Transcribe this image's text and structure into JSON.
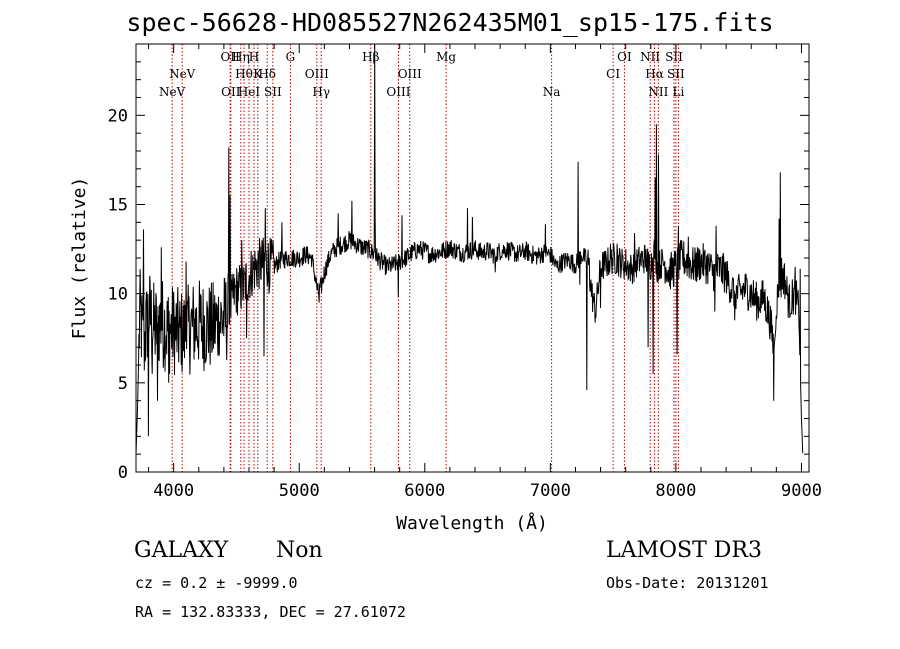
{
  "header": {
    "title": "spec-56628-HD085527N262435M01_sp15-175.fits"
  },
  "info": {
    "class": "GALAXY",
    "subclass": "Non",
    "survey": "LAMOST DR3",
    "cz_line": "cz = 0.2 ± -9999.0",
    "obs_date": "Obs-Date: 20131201",
    "coords": "RA = 132.83333, DEC =  27.61072"
  },
  "chart_data": {
    "type": "line",
    "title": "spec-56628-HD085527N262435M01_sp15-175.fits",
    "xlabel": "Wavelength (Å)",
    "ylabel": "Flux (relative)",
    "xlim": [
      3700,
      9060
    ],
    "ylim": [
      0,
      24
    ],
    "xticks": [
      4000,
      5000,
      6000,
      7000,
      8000,
      9000
    ],
    "yticks": [
      0,
      5,
      10,
      15,
      20
    ],
    "grid": false,
    "line_color": "#000000",
    "marker_color": "#c00000",
    "spectrum_anchors": [
      [
        3700,
        1
      ],
      [
        3710,
        3
      ],
      [
        3730,
        9
      ],
      [
        3760,
        7
      ],
      [
        3800,
        9
      ],
      [
        3850,
        8
      ],
      [
        3900,
        8.5
      ],
      [
        3950,
        8
      ],
      [
        4000,
        8
      ],
      [
        4050,
        7.7
      ],
      [
        4100,
        7.8
      ],
      [
        4150,
        8.2
      ],
      [
        4200,
        8.3
      ],
      [
        4250,
        8.2
      ],
      [
        4300,
        8.1
      ],
      [
        4350,
        8.4
      ],
      [
        4400,
        8.6
      ],
      [
        4440,
        8.7
      ],
      [
        4470,
        9.8
      ],
      [
        4500,
        10.2
      ],
      [
        4550,
        10.3
      ],
      [
        4600,
        11
      ],
      [
        4650,
        11.5
      ],
      [
        4700,
        11.7
      ],
      [
        4750,
        11.8
      ],
      [
        4800,
        11.5
      ],
      [
        4850,
        11.9
      ],
      [
        4900,
        12
      ],
      [
        4950,
        12
      ],
      [
        5000,
        12
      ],
      [
        5050,
        12.2
      ],
      [
        5100,
        12
      ],
      [
        5150,
        10
      ],
      [
        5180,
        10.5
      ],
      [
        5200,
        11.2
      ],
      [
        5250,
        12.2
      ],
      [
        5300,
        12.6
      ],
      [
        5350,
        12.8
      ],
      [
        5400,
        13
      ],
      [
        5450,
        12.8
      ],
      [
        5500,
        12.6
      ],
      [
        5550,
        12.5
      ],
      [
        5600,
        12.2
      ],
      [
        5650,
        11.8
      ],
      [
        5700,
        11.5
      ],
      [
        5750,
        11.6
      ],
      [
        5800,
        11.8
      ],
      [
        5850,
        12
      ],
      [
        5900,
        12.3
      ],
      [
        5950,
        12.5
      ],
      [
        6000,
        12.4
      ],
      [
        6050,
        12.2
      ],
      [
        6100,
        12.3
      ],
      [
        6150,
        12.4
      ],
      [
        6200,
        12.6
      ],
      [
        6250,
        12.4
      ],
      [
        6300,
        12.3
      ],
      [
        6350,
        12.4
      ],
      [
        6400,
        12.5
      ],
      [
        6450,
        12.3
      ],
      [
        6500,
        12.4
      ],
      [
        6550,
        12.2
      ],
      [
        6600,
        12.4
      ],
      [
        6650,
        12.5
      ],
      [
        6700,
        12.3
      ],
      [
        6750,
        12.2
      ],
      [
        6800,
        12.4
      ],
      [
        6850,
        12.2
      ],
      [
        6900,
        12.1
      ],
      [
        6950,
        12.3
      ],
      [
        7000,
        12.2
      ],
      [
        7050,
        11.5
      ],
      [
        7100,
        11.8
      ],
      [
        7150,
        11.9
      ],
      [
        7200,
        11.6
      ],
      [
        7250,
        12.2
      ],
      [
        7300,
        11.8
      ],
      [
        7330,
        10
      ],
      [
        7360,
        9
      ],
      [
        7400,
        11.5
      ],
      [
        7450,
        11.7
      ],
      [
        7500,
        12
      ],
      [
        7550,
        11.8
      ],
      [
        7600,
        11.6
      ],
      [
        7650,
        11.4
      ],
      [
        7700,
        11.8
      ],
      [
        7750,
        12
      ],
      [
        7800,
        11.6
      ],
      [
        7830,
        12.5
      ],
      [
        7850,
        11.5
      ],
      [
        7900,
        11.8
      ],
      [
        7950,
        11.2
      ],
      [
        8000,
        11.5
      ],
      [
        8050,
        12
      ],
      [
        8100,
        11.8
      ],
      [
        8150,
        11.5
      ],
      [
        8200,
        11.8
      ],
      [
        8250,
        11.6
      ],
      [
        8300,
        11.2
      ],
      [
        8350,
        11.4
      ],
      [
        8400,
        11
      ],
      [
        8450,
        10.2
      ],
      [
        8500,
        10
      ],
      [
        8550,
        10.3
      ],
      [
        8600,
        10
      ],
      [
        8650,
        9.5
      ],
      [
        8700,
        9.8
      ],
      [
        8750,
        8.5
      ],
      [
        8780,
        7
      ],
      [
        8800,
        9.5
      ],
      [
        8830,
        10.5
      ],
      [
        8860,
        11
      ],
      [
        8900,
        9.5
      ],
      [
        8950,
        10
      ],
      [
        8980,
        9
      ],
      [
        9000,
        3
      ],
      [
        9010,
        1
      ]
    ],
    "spectrum_spikes": [
      [
        4440,
        18.2
      ],
      [
        4448,
        15.5
      ],
      [
        4720,
        6.5
      ],
      [
        4730,
        14.8
      ],
      [
        4740,
        11.2
      ],
      [
        5600,
        24.5
      ],
      [
        5605,
        14.5
      ],
      [
        5310,
        14.5
      ],
      [
        6340,
        14.8
      ],
      [
        6960,
        13.9
      ],
      [
        7220,
        17.4
      ],
      [
        7235,
        10.5
      ],
      [
        7290,
        4.6
      ],
      [
        7310,
        12
      ],
      [
        7600,
        12.5
      ],
      [
        7670,
        13.4
      ],
      [
        7780,
        7
      ],
      [
        7820,
        5.5
      ],
      [
        7835,
        16.5
      ],
      [
        7845,
        19.5
      ],
      [
        7860,
        17.8
      ],
      [
        7880,
        11
      ],
      [
        8010,
        6.6
      ],
      [
        8020,
        13.8
      ],
      [
        8310,
        9
      ],
      [
        8320,
        13.8
      ],
      [
        8780,
        4
      ],
      [
        8790,
        7.5
      ],
      [
        8820,
        14.2
      ],
      [
        8830,
        16.8
      ],
      [
        8840,
        12
      ],
      [
        3760,
        13.6
      ],
      [
        3800,
        2
      ],
      [
        3830,
        5.5
      ],
      [
        3870,
        4
      ],
      [
        3900,
        12.6
      ],
      [
        3960,
        5
      ],
      [
        4060,
        6
      ],
      [
        4100,
        11.8
      ],
      [
        4260,
        6.5
      ],
      [
        4360,
        6.8
      ],
      [
        4540,
        13
      ],
      [
        4580,
        7.5
      ],
      [
        4760,
        10
      ],
      [
        4860,
        14
      ],
      [
        5160,
        9.5
      ],
      [
        5420,
        15.2
      ],
      [
        5790,
        9.8
      ],
      [
        5820,
        14.4
      ],
      [
        6380,
        14.3
      ],
      [
        6560,
        11.2
      ],
      [
        7400,
        9.2
      ],
      [
        7480,
        12.8
      ],
      [
        7530,
        12.8
      ],
      [
        8100,
        13.2
      ],
      [
        8380,
        12.2
      ],
      [
        8470,
        8.5
      ],
      [
        8950,
        11.5
      ],
      [
        8990,
        11.4
      ]
    ],
    "line_markers": [
      {
        "wl": 3988,
        "label": "NeV",
        "row": 2
      },
      {
        "wl": 4068,
        "label": "NeV",
        "row": 1
      },
      {
        "wl": 4450,
        "label": "OII",
        "row": 0
      },
      {
        "wl": 4455,
        "label": "OII",
        "row": 2
      },
      {
        "wl": 4535,
        "label": "Hη",
        "row": 0
      },
      {
        "wl": 4560,
        "label": "Hθ",
        "row": 1
      },
      {
        "wl": 4600,
        "label": "HeI",
        "row": 2
      },
      {
        "wl": 4640,
        "label": "H",
        "row": 0
      },
      {
        "wl": 4670,
        "label": "K",
        "row": 1
      },
      {
        "wl": 4745,
        "label": "Hδ",
        "row": 1
      },
      {
        "wl": 4790,
        "label": "SII",
        "row": 2
      },
      {
        "wl": 4930,
        "label": "G",
        "row": 0
      },
      {
        "wl": 5140,
        "label": "OIII",
        "row": 1
      },
      {
        "wl": 5175,
        "label": "Hγ",
        "row": 2
      },
      {
        "wl": 5570,
        "label": "Hβ",
        "row": 0
      },
      {
        "wl": 5790,
        "label": "OIII",
        "row": 2
      },
      {
        "wl": 5880,
        "label": "OIII",
        "row": 1
      },
      {
        "wl": 6170,
        "label": "Mg",
        "row": 0
      },
      {
        "wl": 7010,
        "label": "Na",
        "row": 2
      },
      {
        "wl": 7500,
        "label": "CI",
        "row": 1
      },
      {
        "wl": 7590,
        "label": "OI",
        "row": 0
      },
      {
        "wl": 7795,
        "label": "NII",
        "row": 0
      },
      {
        "wl": 7830,
        "label": "Hα",
        "row": 1
      },
      {
        "wl": 7860,
        "label": "NII",
        "row": 2
      },
      {
        "wl": 7985,
        "label": "SII",
        "row": 0
      },
      {
        "wl": 8000,
        "label": "SII",
        "row": 1
      },
      {
        "wl": 8020,
        "label": "Li",
        "row": 2
      }
    ]
  }
}
